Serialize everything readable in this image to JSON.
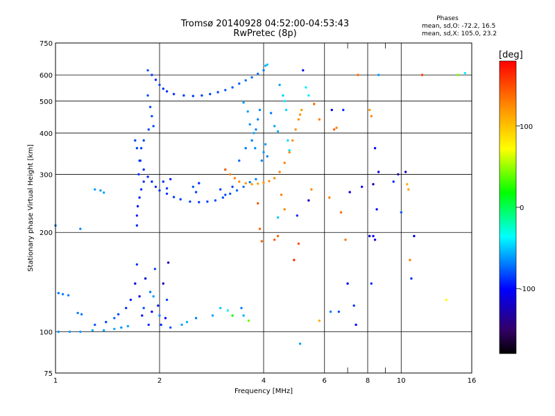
{
  "header": {
    "title_line1": "Tromsø 20140928 04:52:00-04:53:43",
    "title_line2": "RwPretec (8p)"
  },
  "stats": {
    "heading": "Phases",
    "line_o": "mean, sd,O: -72.2, 16.5",
    "line_x": "mean, sd,X: 105.0, 23.2"
  },
  "colorbar": {
    "unit_label": "[deg]",
    "min": -180,
    "max": 180,
    "tick_labels": [
      "100",
      "0",
      "-100"
    ],
    "tick_values": [
      100,
      0,
      -100
    ]
  },
  "chart_data": {
    "type": "scatter",
    "title": "Tromsø 20140928 04:52:00-04:53:43",
    "subtitle": "RwPretec (8p)",
    "xlabel": "Frequency [MHz]",
    "ylabel": "Stationary phase Virtual Height [km]",
    "x_scale": "log",
    "y_scale": "log",
    "xlim": [
      1,
      16
    ],
    "ylim": [
      75,
      750
    ],
    "x_ticks": [
      1,
      2,
      4,
      6,
      8,
      10,
      16
    ],
    "x_tick_labels": [
      "1",
      "2",
      "4",
      "6",
      "8",
      "10",
      "16"
    ],
    "y_ticks": [
      75,
      100,
      200,
      300,
      400,
      500,
      600,
      750
    ],
    "y_tick_labels": [
      "75",
      "100",
      "200",
      "300",
      "400",
      "500",
      "600",
      "750"
    ],
    "grid": true,
    "color_encoding": "Phase [deg]",
    "series": [
      {
        "points": [
          [
            1.02,
            100,
            -62
          ],
          [
            1.1,
            100,
            -62
          ],
          [
            1.18,
            100,
            -60
          ],
          [
            1.28,
            101,
            -58
          ],
          [
            1.38,
            101,
            -60
          ],
          [
            1.48,
            102,
            -58
          ],
          [
            1.55,
            103,
            -65
          ],
          [
            1.62,
            104,
            -60
          ],
          [
            1.02,
            131,
            -70
          ],
          [
            1.05,
            130,
            -70
          ],
          [
            1.09,
            129,
            -68
          ],
          [
            1.16,
            114,
            -70
          ],
          [
            1.19,
            113,
            -70
          ],
          [
            1.3,
            105,
            -80
          ],
          [
            1.4,
            107,
            -82
          ],
          [
            1.48,
            110,
            -75
          ],
          [
            1.52,
            113,
            -85
          ],
          [
            1.6,
            118,
            -90
          ],
          [
            1.65,
            125,
            -95
          ],
          [
            1.7,
            140,
            -110
          ],
          [
            1.72,
            160,
            -88
          ],
          [
            1.75,
            128,
            -100
          ],
          [
            1.78,
            112,
            -95
          ],
          [
            1.82,
            145,
            -115
          ],
          [
            1.86,
            105,
            -90
          ],
          [
            1.9,
            115,
            -105
          ],
          [
            1.94,
            155,
            -85
          ],
          [
            1.98,
            120,
            -95
          ],
          [
            2.02,
            105,
            -90
          ],
          [
            2.05,
            140,
            -130
          ],
          [
            2.08,
            110,
            -100
          ],
          [
            2.1,
            125,
            -85
          ],
          [
            2.12,
            162,
            -125
          ],
          [
            2.15,
            103,
            -80
          ],
          [
            1.8,
            118,
            -80
          ],
          [
            1.88,
            132,
            -70
          ],
          [
            1.92,
            128,
            -60
          ],
          [
            2.0,
            112,
            -65
          ],
          [
            2.32,
            105,
            -60
          ],
          [
            2.4,
            107,
            -55
          ],
          [
            2.55,
            110,
            -70
          ],
          [
            2.85,
            112,
            -60
          ],
          [
            3.0,
            118,
            -50
          ],
          [
            3.15,
            116,
            -40
          ],
          [
            3.25,
            112,
            20
          ],
          [
            3.45,
            118,
            -70
          ],
          [
            3.5,
            112,
            -55
          ],
          [
            3.62,
            108,
            40
          ],
          [
            1.0,
            210,
            -70
          ],
          [
            1.18,
            205,
            -65
          ],
          [
            1.3,
            270,
            -60
          ],
          [
            1.35,
            268,
            -60
          ],
          [
            1.38,
            264,
            -60
          ],
          [
            1.72,
            210,
            -90
          ],
          [
            1.72,
            225,
            -92
          ],
          [
            1.73,
            240,
            -95
          ],
          [
            1.75,
            255,
            -92
          ],
          [
            1.77,
            270,
            -90
          ],
          [
            1.8,
            285,
            -88
          ],
          [
            1.74,
            300,
            -90
          ],
          [
            1.75,
            330,
            -88
          ],
          [
            1.77,
            360,
            -85
          ],
          [
            1.8,
            380,
            -85
          ],
          [
            1.7,
            380,
            -85
          ],
          [
            1.72,
            360,
            -85
          ],
          [
            1.76,
            330,
            -88
          ],
          [
            1.8,
            310,
            -90
          ],
          [
            1.85,
            295,
            -92
          ],
          [
            1.9,
            285,
            -92
          ],
          [
            1.95,
            275,
            -90
          ],
          [
            2.0,
            268,
            -88
          ],
          [
            2.1,
            262,
            -88
          ],
          [
            2.2,
            256,
            -85
          ],
          [
            2.3,
            252,
            -85
          ],
          [
            2.45,
            248,
            -85
          ],
          [
            2.6,
            247,
            -85
          ],
          [
            2.75,
            248,
            -85
          ],
          [
            2.9,
            250,
            -82
          ],
          [
            3.05,
            255,
            -80
          ],
          [
            3.2,
            262,
            -78
          ],
          [
            3.35,
            268,
            -75
          ],
          [
            3.5,
            275,
            -72
          ],
          [
            3.65,
            284,
            -70
          ],
          [
            3.8,
            290,
            -68
          ],
          [
            2.05,
            285,
            -90
          ],
          [
            2.1,
            272,
            -85
          ],
          [
            2.15,
            290,
            -95
          ],
          [
            2.5,
            275,
            -80
          ],
          [
            2.55,
            265,
            -85
          ],
          [
            2.6,
            282,
            -90
          ],
          [
            3.0,
            270,
            -85
          ],
          [
            3.1,
            260,
            -80
          ],
          [
            3.25,
            275,
            -85
          ],
          [
            3.1,
            310,
            -80
          ],
          [
            3.4,
            330,
            -75
          ],
          [
            3.55,
            360,
            -70
          ],
          [
            3.7,
            380,
            -70
          ],
          [
            3.8,
            410,
            -68
          ],
          [
            3.85,
            440,
            -68
          ],
          [
            3.9,
            470,
            -65
          ],
          [
            3.95,
            330,
            -66
          ],
          [
            4.0,
            350,
            -62
          ],
          [
            4.05,
            370,
            -60
          ],
          [
            4.1,
            340,
            -65
          ],
          [
            3.1,
            310,
            140
          ],
          [
            3.2,
            300,
            130
          ],
          [
            3.3,
            292,
            128
          ],
          [
            3.4,
            285,
            125
          ],
          [
            3.55,
            282,
            120
          ],
          [
            3.7,
            280,
            118
          ],
          [
            3.85,
            281,
            118
          ],
          [
            4.0,
            283,
            120
          ],
          [
            4.15,
            286,
            122
          ],
          [
            4.3,
            292,
            125
          ],
          [
            4.45,
            305,
            128
          ],
          [
            4.6,
            325,
            130
          ],
          [
            4.75,
            350,
            128
          ],
          [
            4.85,
            380,
            125
          ],
          [
            4.95,
            410,
            124
          ],
          [
            5.05,
            440,
            122
          ],
          [
            5.1,
            455,
            124
          ],
          [
            5.15,
            470,
            120
          ],
          [
            1.85,
            620,
            -80
          ],
          [
            1.9,
            600,
            -85
          ],
          [
            1.95,
            580,
            -90
          ],
          [
            2.0,
            560,
            -85
          ],
          [
            2.05,
            545,
            -88
          ],
          [
            2.1,
            535,
            -90
          ],
          [
            2.2,
            525,
            -88
          ],
          [
            2.35,
            520,
            -86
          ],
          [
            2.5,
            518,
            -85
          ],
          [
            2.65,
            520,
            -85
          ],
          [
            2.8,
            525,
            -83
          ],
          [
            2.95,
            532,
            -82
          ],
          [
            3.1,
            540,
            -80
          ],
          [
            3.25,
            550,
            -78
          ],
          [
            3.4,
            565,
            -76
          ],
          [
            3.55,
            578,
            -74
          ],
          [
            3.7,
            590,
            -73
          ],
          [
            3.85,
            605,
            -72
          ],
          [
            4.0,
            620,
            -70
          ],
          [
            4.05,
            640,
            -55
          ],
          [
            4.1,
            645,
            -50
          ],
          [
            1.85,
            520,
            -80
          ],
          [
            1.88,
            480,
            -82
          ],
          [
            1.9,
            450,
            -82
          ],
          [
            1.92,
            420,
            -84
          ],
          [
            1.86,
            410,
            -84
          ],
          [
            3.5,
            495,
            -60
          ],
          [
            3.6,
            465,
            -60
          ],
          [
            3.65,
            425,
            -65
          ],
          [
            3.75,
            400,
            -60
          ],
          [
            3.78,
            360,
            -65
          ],
          [
            4.2,
            460,
            -70
          ],
          [
            4.3,
            420,
            -60
          ],
          [
            4.4,
            405,
            -55
          ],
          [
            4.45,
            560,
            -60
          ],
          [
            4.55,
            520,
            -48
          ],
          [
            4.6,
            500,
            -40
          ],
          [
            4.65,
            470,
            -45
          ],
          [
            4.7,
            380,
            -45
          ],
          [
            4.75,
            355,
            -40
          ],
          [
            4.5,
            260,
            130
          ],
          [
            4.6,
            235,
            128
          ],
          [
            4.4,
            195,
            140
          ],
          [
            4.3,
            190,
            145
          ],
          [
            3.9,
            205,
            140
          ],
          [
            3.95,
            188,
            142
          ],
          [
            3.85,
            245,
            148
          ],
          [
            4.4,
            222,
            -50
          ],
          [
            4.9,
            165,
            165
          ],
          [
            5.0,
            225,
            -90
          ],
          [
            5.05,
            185,
            150
          ],
          [
            5.2,
            620,
            -110
          ],
          [
            5.3,
            550,
            -40
          ],
          [
            5.4,
            520,
            -40
          ],
          [
            5.5,
            270,
            125
          ],
          [
            5.6,
            490,
            140
          ],
          [
            5.8,
            440,
            130
          ],
          [
            6.3,
            470,
            -110
          ],
          [
            6.5,
            415,
            130
          ],
          [
            6.8,
            470,
            -90
          ],
          [
            7.5,
            600,
            138
          ],
          [
            8.1,
            470,
            120
          ],
          [
            8.2,
            450,
            125
          ],
          [
            8.3,
            280,
            -120
          ],
          [
            8.4,
            360,
            -100
          ],
          [
            8.5,
            235,
            -100
          ],
          [
            8.6,
            305,
            -110
          ],
          [
            8.1,
            195,
            -120
          ],
          [
            8.3,
            195,
            -100
          ],
          [
            8.4,
            190,
            -110
          ],
          [
            8.2,
            140,
            -90
          ],
          [
            8.6,
            600,
            -60
          ],
          [
            10.3,
            305,
            -120
          ],
          [
            10.4,
            280,
            110
          ],
          [
            10.5,
            270,
            115
          ],
          [
            10.6,
            165,
            130
          ],
          [
            10.7,
            145,
            -90
          ],
          [
            10.9,
            195,
            -110
          ],
          [
            11.5,
            600,
            155
          ],
          [
            13.5,
            125,
            70
          ],
          [
            14.6,
            600,
            40
          ],
          [
            15.3,
            608,
            -40
          ],
          [
            6.7,
            230,
            140
          ],
          [
            6.9,
            190,
            135
          ],
          [
            7.0,
            140,
            -100
          ],
          [
            7.3,
            120,
            -90
          ],
          [
            6.6,
            115,
            -80
          ],
          [
            7.4,
            105,
            -100
          ],
          [
            6.25,
            115,
            -70
          ],
          [
            5.8,
            108,
            110
          ],
          [
            5.1,
            92,
            -60
          ],
          [
            7.1,
            265,
            -110
          ],
          [
            7.7,
            275,
            -100
          ],
          [
            10.0,
            230,
            -80
          ],
          [
            9.5,
            285,
            -90
          ],
          [
            9.8,
            300,
            -130
          ],
          [
            6.2,
            255,
            130
          ],
          [
            5.4,
            250,
            -120
          ],
          [
            6.4,
            410,
            145
          ]
        ]
      }
    ]
  }
}
